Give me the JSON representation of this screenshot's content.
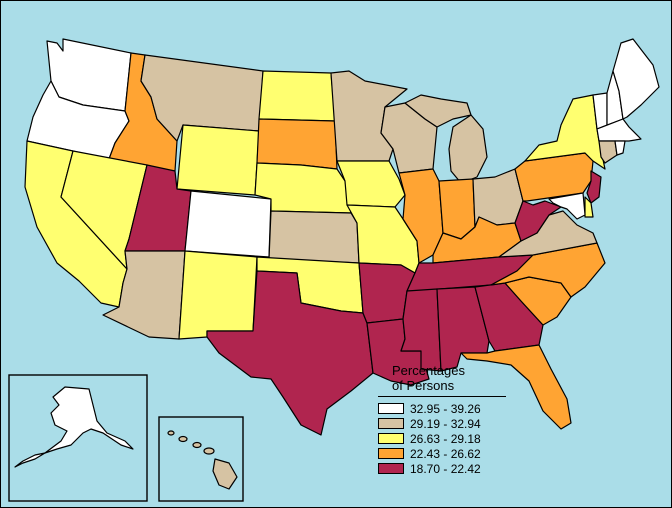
{
  "colors": {
    "water": "#aadde8",
    "c1": "#ffffff",
    "c2": "#d6c3a3",
    "c3": "#ffff70",
    "c4": "#ffa433",
    "c5": "#b0254f"
  },
  "legend": {
    "title_line1": "Percentages",
    "title_line2": "of Persons",
    "classes": [
      {
        "label": "32.95 - 39.26",
        "color": "#ffffff"
      },
      {
        "label": "29.19 - 32.94",
        "color": "#d6c3a3"
      },
      {
        "label": "26.63 - 29.18",
        "color": "#ffff70"
      },
      {
        "label": "22.43 - 26.62",
        "color": "#ffa433"
      },
      {
        "label": "18.70 - 22.42",
        "color": "#b0254f"
      }
    ]
  },
  "states": [
    {
      "id": "WA",
      "class": 5
    },
    {
      "id": "OR",
      "class": 5
    },
    {
      "id": "CA",
      "class": 3
    },
    {
      "id": "NV",
      "class": 3
    },
    {
      "id": "ID",
      "class": 2
    },
    {
      "id": "MT",
      "class": 4
    },
    {
      "id": "WY",
      "class": 3
    },
    {
      "id": "UT",
      "class": 1
    },
    {
      "id": "CO",
      "class": 5
    },
    {
      "id": "AZ",
      "class": 4
    },
    {
      "id": "NM",
      "class": 3
    },
    {
      "id": "ND",
      "class": 3
    },
    {
      "id": "SD",
      "class": 2
    },
    {
      "id": "NE",
      "class": 3
    },
    {
      "id": "KS",
      "class": 4
    },
    {
      "id": "OK",
      "class": 3
    },
    {
      "id": "TX",
      "class": 1
    },
    {
      "id": "MN",
      "class": 4
    },
    {
      "id": "IA",
      "class": 3
    },
    {
      "id": "MO",
      "class": 3
    },
    {
      "id": "AR",
      "class": 1
    },
    {
      "id": "LA",
      "class": 1
    },
    {
      "id": "WI",
      "class": 4
    },
    {
      "id": "IL",
      "class": 2
    },
    {
      "id": "MI",
      "class": 4
    },
    {
      "id": "IN",
      "class": 2
    },
    {
      "id": "OH",
      "class": 4
    },
    {
      "id": "KY",
      "class": 2
    },
    {
      "id": "TN",
      "class": 1
    },
    {
      "id": "MS",
      "class": 1
    },
    {
      "id": "AL",
      "class": 1
    },
    {
      "id": "GA",
      "class": 1
    },
    {
      "id": "FL",
      "class": 2
    },
    {
      "id": "SC",
      "class": 2
    },
    {
      "id": "NC",
      "class": 2
    },
    {
      "id": "VA",
      "class": 4
    },
    {
      "id": "WV",
      "class": 1
    },
    {
      "id": "PA",
      "class": 2
    },
    {
      "id": "NY",
      "class": 3
    },
    {
      "id": "VT",
      "class": 5
    },
    {
      "id": "NH",
      "class": 5
    },
    {
      "id": "ME",
      "class": 5
    },
    {
      "id": "MA",
      "class": 5
    },
    {
      "id": "RI",
      "class": 5
    },
    {
      "id": "CT",
      "class": 4
    },
    {
      "id": "NJ",
      "class": 1
    },
    {
      "id": "DE",
      "class": 3
    },
    {
      "id": "MD",
      "class": 5
    },
    {
      "id": "AK",
      "class": 5
    },
    {
      "id": "HI",
      "class": 4
    }
  ]
}
